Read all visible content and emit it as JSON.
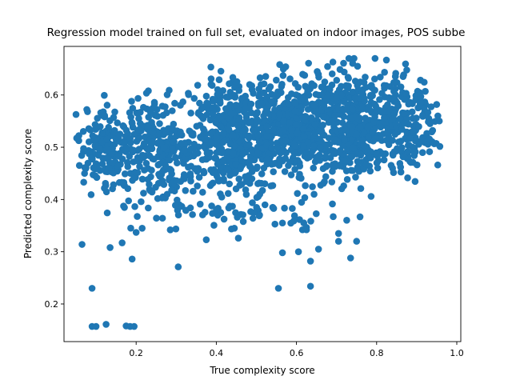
{
  "chart_data": {
    "type": "scatter",
    "title": "Regression model trained on full set, evaluated on indoor images, POS subbe",
    "xlabel": "True complexity score",
    "ylabel": "Predicted complexity score",
    "xlim": [
      0.02,
      1.01
    ],
    "ylim": [
      0.128,
      0.693
    ],
    "xticks": [
      0.2,
      0.4,
      0.6,
      0.8,
      1.0
    ],
    "xtick_labels": [
      "0.2",
      "0.4",
      "0.6",
      "0.8",
      "1.0"
    ],
    "yticks": [
      0.2,
      0.3,
      0.4,
      0.5,
      0.6
    ],
    "ytick_labels": [
      "0.2",
      "0.3",
      "0.4",
      "0.5",
      "0.6"
    ],
    "grid": false,
    "legend": false,
    "marker_color": "#1f77b4",
    "outlier_points": [
      {
        "x": 0.09,
        "y": 0.157
      },
      {
        "x": 0.1,
        "y": 0.157
      },
      {
        "x": 0.125,
        "y": 0.161
      },
      {
        "x": 0.175,
        "y": 0.158
      },
      {
        "x": 0.185,
        "y": 0.157
      },
      {
        "x": 0.195,
        "y": 0.157
      },
      {
        "x": 0.09,
        "y": 0.23
      },
      {
        "x": 0.065,
        "y": 0.314
      },
      {
        "x": 0.135,
        "y": 0.308
      },
      {
        "x": 0.165,
        "y": 0.317
      },
      {
        "x": 0.19,
        "y": 0.286
      },
      {
        "x": 0.305,
        "y": 0.271
      },
      {
        "x": 0.375,
        "y": 0.323
      },
      {
        "x": 0.555,
        "y": 0.23
      },
      {
        "x": 0.565,
        "y": 0.298
      },
      {
        "x": 0.605,
        "y": 0.3
      },
      {
        "x": 0.635,
        "y": 0.234
      },
      {
        "x": 0.635,
        "y": 0.282
      },
      {
        "x": 0.615,
        "y": 0.342
      },
      {
        "x": 0.625,
        "y": 0.342
      },
      {
        "x": 0.705,
        "y": 0.335
      },
      {
        "x": 0.705,
        "y": 0.32
      },
      {
        "x": 0.735,
        "y": 0.288
      },
      {
        "x": 0.75,
        "y": 0.32
      },
      {
        "x": 0.655,
        "y": 0.305
      },
      {
        "x": 0.215,
        "y": 0.345
      },
      {
        "x": 0.2,
        "y": 0.337
      },
      {
        "x": 0.455,
        "y": 0.326
      },
      {
        "x": 0.445,
        "y": 0.345
      },
      {
        "x": 0.565,
        "y": 0.355
      }
    ],
    "point_clusters": [
      {
        "x_range": [
          0.05,
          0.2
        ],
        "y_range": [
          0.42,
          0.58
        ],
        "n": 180
      },
      {
        "x_range": [
          0.18,
          0.35
        ],
        "y_range": [
          0.4,
          0.6
        ],
        "n": 250
      },
      {
        "x_range": [
          0.33,
          0.55
        ],
        "y_range": [
          0.41,
          0.63
        ],
        "n": 450
      },
      {
        "x_range": [
          0.5,
          0.7
        ],
        "y_range": [
          0.43,
          0.65
        ],
        "n": 420
      },
      {
        "x_range": [
          0.65,
          0.85
        ],
        "y_range": [
          0.43,
          0.66
        ],
        "n": 380
      },
      {
        "x_range": [
          0.8,
          0.96
        ],
        "y_range": [
          0.45,
          0.64
        ],
        "n": 180
      },
      {
        "x_range": [
          0.1,
          0.75
        ],
        "y_range": [
          0.34,
          0.42
        ],
        "n": 80
      }
    ]
  }
}
